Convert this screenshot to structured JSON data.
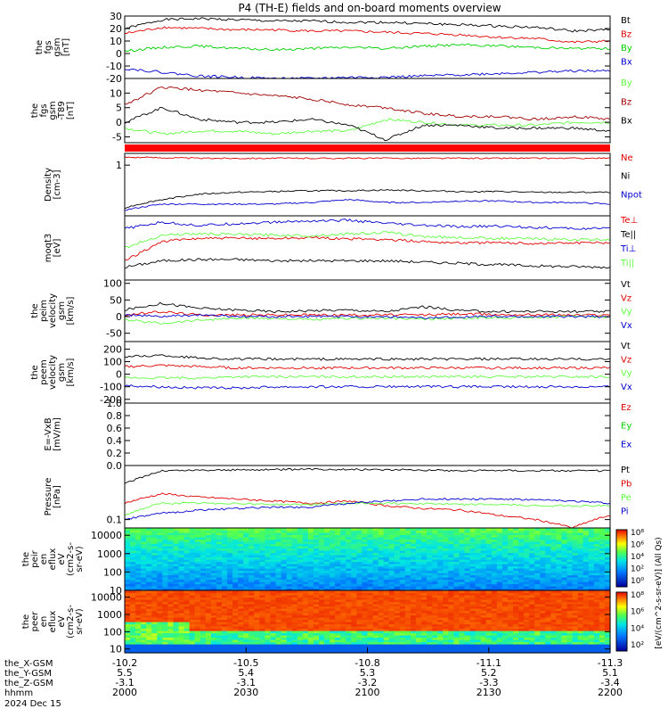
{
  "title": "P4 (TH-E) fields and on-board moments overview",
  "colors": {
    "black": "#000000",
    "red": "#e00000",
    "green": "#00d000",
    "lightgreen": "#60ff40",
    "blue": "#0000d0",
    "darkred": "#a00000"
  },
  "chart_data": [
    {
      "type": "line",
      "panel": "fgs-gsm",
      "ylabel": [
        "the",
        "fgs",
        "gsm",
        "[nT]"
      ],
      "ylim": [
        -20,
        30
      ],
      "yticks": [
        -20,
        -10,
        0,
        10,
        20,
        30
      ],
      "series": [
        {
          "name": "Bt",
          "color": "black",
          "values": [
            20,
            27,
            28,
            27,
            26,
            26,
            25,
            25,
            24,
            23,
            22,
            21,
            18,
            19
          ]
        },
        {
          "name": "Bz",
          "color": "red",
          "values": [
            16,
            21,
            20,
            19,
            19,
            18,
            18,
            17,
            16,
            15,
            13,
            12,
            9,
            10
          ]
        },
        {
          "name": "By",
          "color": "green",
          "values": [
            2,
            5,
            6,
            4,
            3,
            4,
            5,
            4,
            6,
            7,
            6,
            5,
            4,
            4
          ]
        },
        {
          "name": "Bx",
          "color": "blue",
          "values": [
            -12,
            -15,
            -18,
            -19,
            -20,
            -20,
            -19,
            -19,
            -18,
            -17,
            -16,
            -15,
            -14,
            -14
          ]
        }
      ]
    },
    {
      "type": "line",
      "panel": "fgs-gsm-detrended",
      "ylabel": [
        "the",
        "fgs",
        "gsm",
        "-T89",
        "[nT]"
      ],
      "ylim": [
        -7,
        15
      ],
      "yticks": [
        -5,
        0,
        5,
        10
      ],
      "series": [
        {
          "name": "By",
          "color": "lightgreen",
          "values": [
            -2,
            -4,
            -3,
            -3,
            -4,
            -3,
            -3,
            1,
            0,
            -1,
            -1,
            -1,
            0,
            0
          ]
        },
        {
          "name": "Bz",
          "color": "darkred",
          "values": [
            6,
            12,
            11,
            10,
            9,
            8,
            6,
            5,
            3,
            2,
            2,
            1,
            2,
            1
          ]
        },
        {
          "name": "Bx",
          "color": "black",
          "values": [
            0,
            5,
            1,
            0,
            0,
            1,
            -1,
            -6,
            -1,
            -1,
            -2,
            -2,
            -2,
            -3
          ]
        }
      ]
    },
    {
      "type": "line",
      "panel": "density",
      "ylabel": [
        "Density",
        "[cm-3]"
      ],
      "ylim": [
        0.05,
        2
      ],
      "log": true,
      "yticks": [
        1
      ],
      "series": [
        {
          "name": "Ne",
          "color": "red",
          "values": [
            1.6,
            1.55,
            1.5,
            1.5,
            1.5,
            1.5,
            1.5,
            1.5,
            1.5,
            1.5,
            1.5,
            1.5,
            1.5,
            1.5
          ]
        },
        {
          "name": "Ni",
          "color": "black",
          "values": [
            0.08,
            0.13,
            0.18,
            0.2,
            0.21,
            0.22,
            0.22,
            0.23,
            0.22,
            0.21,
            0.21,
            0.2,
            0.2,
            0.2
          ]
        },
        {
          "name": "Npot",
          "color": "blue",
          "values": [
            0.07,
            0.1,
            0.1,
            0.1,
            0.1,
            0.11,
            0.13,
            0.11,
            0.11,
            0.12,
            0.12,
            0.11,
            0.11,
            0.1
          ]
        }
      ]
    },
    {
      "type": "line",
      "panel": "temperature",
      "ylabel": [
        "moqt3",
        "[eV]"
      ],
      "ylim": [
        0,
        10
      ],
      "yticks": [],
      "series": [
        {
          "name": "Te⊥",
          "color": "red",
          "values": [
            3,
            6,
            6.5,
            6.5,
            6.5,
            6.6,
            6.4,
            6.3,
            6,
            5.8,
            5.8,
            5.7,
            5.8,
            5.8
          ]
        },
        {
          "name": "Te||",
          "color": "black",
          "values": [
            2,
            3,
            3.2,
            3.2,
            3,
            3,
            3,
            3,
            2.8,
            2.6,
            2.4,
            2.2,
            2.1,
            2
          ]
        },
        {
          "name": "Ti⊥",
          "color": "blue",
          "values": [
            8,
            9,
            8.5,
            8.8,
            9,
            9.2,
            9.3,
            8.8,
            8.5,
            8.3,
            8.4,
            8.2,
            8,
            8
          ]
        },
        {
          "name": "Ti||",
          "color": "lightgreen",
          "values": [
            5,
            7,
            7.2,
            7.1,
            7,
            6.9,
            7.2,
            7.4,
            6.8,
            6.6,
            6.5,
            6.4,
            6.3,
            6.3
          ]
        }
      ]
    },
    {
      "type": "line",
      "panel": "peim-velocity",
      "ylabel": [
        "the",
        "peim",
        "velocity",
        "gsm",
        "[km/s]"
      ],
      "ylim": [
        -75,
        110
      ],
      "yticks": [
        -50,
        0,
        50,
        100
      ],
      "series": [
        {
          "name": "Vt",
          "color": "black",
          "values": [
            20,
            40,
            25,
            20,
            15,
            18,
            20,
            15,
            30,
            18,
            15,
            16,
            15,
            15
          ]
        },
        {
          "name": "Vz",
          "color": "red",
          "values": [
            5,
            15,
            5,
            5,
            5,
            5,
            5,
            5,
            5,
            8,
            6,
            6,
            5,
            5
          ]
        },
        {
          "name": "Vy",
          "color": "lightgreen",
          "values": [
            -10,
            -20,
            -10,
            -5,
            -5,
            -10,
            -5,
            -5,
            -8,
            -5,
            -3,
            -2,
            0,
            0
          ]
        },
        {
          "name": "Vx",
          "color": "blue",
          "values": [
            5,
            0,
            5,
            0,
            0,
            0,
            0,
            0,
            -5,
            0,
            0,
            0,
            0,
            0
          ]
        }
      ]
    },
    {
      "type": "line",
      "panel": "peem-velocity",
      "ylabel": [
        "the",
        "peem",
        "velocity",
        "gsm",
        "[km/s]"
      ],
      "ylim": [
        -230,
        260
      ],
      "yticks": [
        -200,
        -100,
        0,
        100,
        200
      ],
      "series": [
        {
          "name": "Vt",
          "color": "black",
          "values": [
            140,
            150,
            130,
            120,
            120,
            120,
            120,
            120,
            120,
            120,
            120,
            120,
            120,
            120
          ]
        },
        {
          "name": "Vz",
          "color": "red",
          "values": [
            60,
            70,
            60,
            50,
            50,
            50,
            50,
            50,
            50,
            50,
            50,
            50,
            50,
            50
          ]
        },
        {
          "name": "Vy",
          "color": "lightgreen",
          "values": [
            -30,
            -30,
            -30,
            -20,
            -20,
            -20,
            -20,
            -20,
            -20,
            -20,
            -20,
            -20,
            -20,
            -20
          ]
        },
        {
          "name": "Vx",
          "color": "blue",
          "values": [
            -90,
            -100,
            -110,
            -110,
            -100,
            -100,
            -100,
            -100,
            -100,
            -100,
            -100,
            -100,
            -100,
            -100
          ]
        }
      ]
    },
    {
      "type": "line",
      "panel": "efield",
      "ylabel": [
        "E=-VxB",
        "[mV/m]"
      ],
      "ylim": [
        0,
        1
      ],
      "yticks": [
        0,
        0.2,
        0.4,
        0.6,
        0.8,
        1.0
      ],
      "ytick_labels": [
        "0.0",
        "0.2",
        "0.4",
        "0.6",
        "0.8",
        "1.0"
      ],
      "series": [
        {
          "name": "Ez",
          "color": "red",
          "values": []
        },
        {
          "name": "Ey",
          "color": "green",
          "values": []
        },
        {
          "name": "Ex",
          "color": "blue",
          "values": []
        }
      ]
    },
    {
      "type": "line",
      "panel": "pressure",
      "ylabel": [
        "Pressure",
        "[nPa]"
      ],
      "ylim": [
        0.07,
        1.0
      ],
      "log": true,
      "yticks": [
        0.1
      ],
      "ytick_labels": [
        "0.1"
      ],
      "series": [
        {
          "name": "Pt",
          "color": "black",
          "values": [
            0.45,
            0.8,
            0.82,
            0.83,
            0.84,
            0.85,
            0.85,
            0.84,
            0.83,
            0.8,
            0.82,
            0.8,
            0.8,
            0.8
          ]
        },
        {
          "name": "Pb",
          "color": "red",
          "values": [
            0.2,
            0.3,
            0.26,
            0.24,
            0.22,
            0.2,
            0.22,
            0.18,
            0.16,
            0.15,
            0.12,
            0.1,
            0.07,
            0.12
          ]
        },
        {
          "name": "Pe",
          "color": "lightgreen",
          "values": [
            0.12,
            0.2,
            0.2,
            0.2,
            0.19,
            0.19,
            0.2,
            0.2,
            0.2,
            0.19,
            0.19,
            0.18,
            0.18,
            0.18
          ]
        },
        {
          "name": "Pi",
          "color": "blue",
          "values": [
            0.1,
            0.13,
            0.15,
            0.16,
            0.17,
            0.17,
            0.2,
            0.22,
            0.24,
            0.24,
            0.24,
            0.23,
            0.22,
            0.2
          ]
        }
      ]
    },
    {
      "type": "heatmap",
      "panel": "peir-en-eflux",
      "ylabel": [
        "the",
        "peir",
        "en",
        "eflux",
        "eV",
        "(cm2-s-",
        "sr-eV)"
      ],
      "ylim": [
        10,
        25000
      ],
      "log": true,
      "yticks": [
        10,
        100,
        1000,
        10000
      ],
      "ytick_labels": [
        "10",
        "100",
        "1000",
        "10000"
      ]
    },
    {
      "type": "heatmap",
      "panel": "peer-en-eflux",
      "ylabel": [
        "the",
        "peer",
        "en",
        "eflux",
        "eV",
        "(cm2-s-",
        "sr-eV)"
      ],
      "ylim": [
        6,
        25000
      ],
      "log": true,
      "yticks": [
        10,
        100,
        1000,
        10000
      ],
      "ytick_labels": [
        "10",
        "100",
        "1000",
        "10000"
      ]
    }
  ],
  "colorbar": {
    "label": "[eV/(cm^2-s-sr-eV)] (All Qs)",
    "ticks": [
      "10⁸",
      "10⁶",
      "10⁴",
      "10²",
      "10⁰"
    ],
    "ticks2": [
      "10⁸",
      "10⁶",
      "10⁴",
      "10²"
    ]
  },
  "xaxis": {
    "rows": [
      {
        "label": "the_X-GSM",
        "values": [
          "-10.2",
          "-10.5",
          "-10.8",
          "-11.1",
          "-11.3"
        ]
      },
      {
        "label": "the_Y-GSM",
        "values": [
          "5.5",
          "5.4",
          "5.3",
          "5.2",
          "5.1"
        ]
      },
      {
        "label": "the_Z-GSM",
        "values": [
          "-3.1",
          "-3.1",
          "-3.2",
          "-3.3",
          "-3.4"
        ]
      },
      {
        "label": "hhmm",
        "values": [
          "2000",
          "2030",
          "2100",
          "2130",
          "2200"
        ]
      }
    ],
    "date": "2024 Dec 15"
  }
}
